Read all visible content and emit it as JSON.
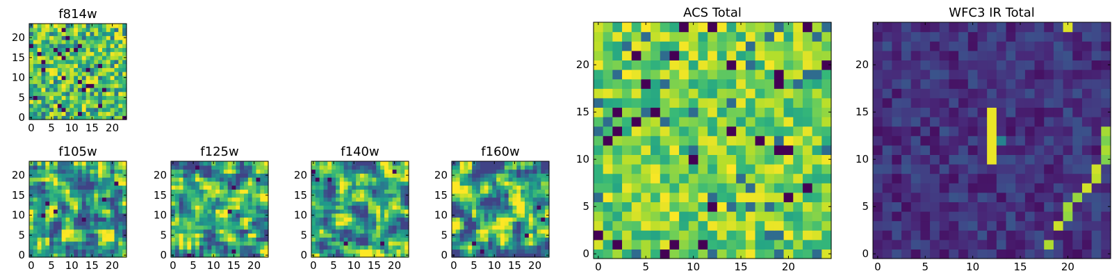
{
  "chart_data": [
    {
      "id": "f814w",
      "type": "heatmap",
      "title": "f814w",
      "rows": 24,
      "cols": 24,
      "xlim": [
        0,
        24
      ],
      "ylim": [
        0,
        24
      ],
      "xticks": [
        0,
        5,
        10,
        15,
        20
      ],
      "yticks": [
        0,
        5,
        10,
        15,
        20
      ],
      "colormap": "viridis",
      "pattern": "noise",
      "seed": 11
    },
    {
      "id": "f105w",
      "type": "heatmap",
      "title": "f105w",
      "rows": 24,
      "cols": 24,
      "xlim": [
        0,
        24
      ],
      "ylim": [
        0,
        24
      ],
      "xticks": [
        0,
        5,
        10,
        15,
        20
      ],
      "yticks": [
        0,
        5,
        10,
        15,
        20
      ],
      "colormap": "viridis",
      "pattern": "smooth",
      "seed": 23
    },
    {
      "id": "f125w",
      "type": "heatmap",
      "title": "f125w",
      "rows": 24,
      "cols": 24,
      "xlim": [
        0,
        24
      ],
      "ylim": [
        0,
        24
      ],
      "xticks": [
        0,
        5,
        10,
        15,
        20
      ],
      "yticks": [
        0,
        5,
        10,
        15,
        20
      ],
      "colormap": "viridis",
      "pattern": "smooth",
      "seed": 37
    },
    {
      "id": "f140w",
      "type": "heatmap",
      "title": "f140w",
      "rows": 24,
      "cols": 24,
      "xlim": [
        0,
        24
      ],
      "ylim": [
        0,
        24
      ],
      "xticks": [
        0,
        5,
        10,
        15,
        20
      ],
      "yticks": [
        0,
        5,
        10,
        15,
        20
      ],
      "colormap": "viridis",
      "pattern": "smooth",
      "seed": 41
    },
    {
      "id": "f160w",
      "type": "heatmap",
      "title": "f160w",
      "rows": 24,
      "cols": 24,
      "xlim": [
        0,
        24
      ],
      "ylim": [
        0,
        24
      ],
      "xticks": [
        0,
        5,
        10,
        15,
        20
      ],
      "yticks": [
        0,
        5,
        10,
        15,
        20
      ],
      "colormap": "viridis",
      "pattern": "smooth",
      "seed": 53
    },
    {
      "id": "acs_total",
      "type": "heatmap",
      "title": "ACS Total",
      "rows": 25,
      "cols": 25,
      "xlim": [
        0,
        25
      ],
      "ylim": [
        0,
        25
      ],
      "xticks": [
        0,
        5,
        10,
        15,
        20
      ],
      "yticks": [
        0,
        5,
        10,
        15,
        20
      ],
      "colormap": "viridis",
      "pattern": "noise-bright",
      "seed": 67
    },
    {
      "id": "wfc3_ir_total",
      "type": "heatmap",
      "title": "WFC3 IR Total",
      "rows": 25,
      "cols": 25,
      "xlim": [
        0,
        25
      ],
      "ylim": [
        0,
        25
      ],
      "xticks": [
        0,
        5,
        10,
        15,
        20
      ],
      "yticks": [
        0,
        5,
        10,
        15,
        20
      ],
      "colormap": "viridis",
      "pattern": "dark-streaks",
      "seed": 79
    }
  ]
}
